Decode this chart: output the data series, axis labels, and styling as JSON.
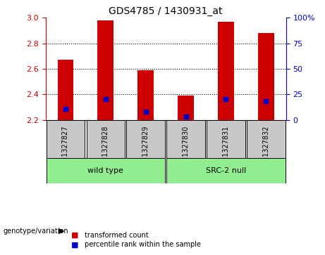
{
  "title": "GDS4785 / 1430931_at",
  "samples": [
    "GSM1327827",
    "GSM1327828",
    "GSM1327829",
    "GSM1327830",
    "GSM1327831",
    "GSM1327832"
  ],
  "red_bar_tops": [
    2.67,
    2.98,
    2.59,
    2.39,
    2.97,
    2.88
  ],
  "blue_dot_values": [
    2.285,
    2.365,
    2.265,
    2.225,
    2.365,
    2.345
  ],
  "bar_bottom": 2.2,
  "ylim": [
    2.2,
    3.0
  ],
  "yticks_left": [
    2.2,
    2.4,
    2.6,
    2.8,
    3.0
  ],
  "yticks_right": [
    0,
    25,
    50,
    75,
    100
  ],
  "right_ylim": [
    0,
    133.33
  ],
  "groups": [
    {
      "label": "wild type",
      "indices": [
        0,
        1,
        2
      ],
      "color": "#90EE90"
    },
    {
      "label": "SRC-2 null",
      "indices": [
        3,
        4,
        5
      ],
      "color": "#90EE90"
    }
  ],
  "group_label": "genotype/variation",
  "legend_items": [
    {
      "color": "#CC0000",
      "label": "transformed count"
    },
    {
      "color": "#0000CC",
      "label": "percentile rank within the sample"
    }
  ],
  "bar_color": "#CC0000",
  "dot_color": "#0000CC",
  "bg_color": "#FFFFFF",
  "plot_bg": "#FFFFFF",
  "grid_color": "#000000",
  "left_axis_color": "#CC0000",
  "right_axis_color": "#0000CC",
  "bar_width": 0.4,
  "sample_bg": "#C8C8C8"
}
